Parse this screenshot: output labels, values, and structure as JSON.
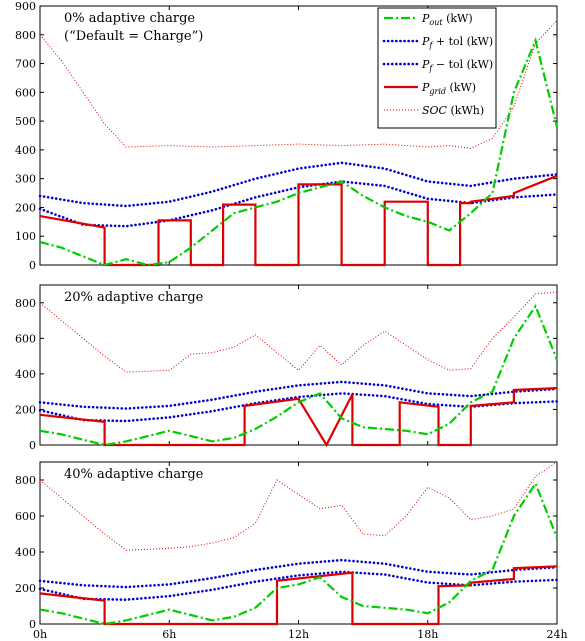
{
  "chart_data": [
    {
      "type": "line",
      "title": "0% adaptive charge",
      "subtitle": "(“Default = Charge”)",
      "xlim": [
        0,
        24
      ],
      "ylim": [
        0,
        900
      ],
      "x_ticks": [],
      "y_ticks": [
        0,
        100,
        200,
        300,
        400,
        500,
        600,
        700,
        800,
        900
      ],
      "legend": {
        "placement": "top-right",
        "entries": [
          {
            "label": "P_out (kW)",
            "color": "#00cc00",
            "style": "dash-dot"
          },
          {
            "label": "P_f + tol (kW)",
            "color": "#0000cc",
            "style": "dotted"
          },
          {
            "label": "P_f − tol (kW)",
            "color": "#0000cc",
            "style": "dotted"
          },
          {
            "label": "P_grid (kW)",
            "color": "#dd0000",
            "style": "solid"
          },
          {
            "label": "SOC (kWh)",
            "color": "#dd0000",
            "style": "fine-dotted"
          }
        ]
      },
      "series": [
        {
          "name": "P_f + tol (kW)",
          "color": "#0000cc",
          "x": [
            0,
            2,
            4,
            6,
            8,
            10,
            12,
            14,
            16,
            18,
            20,
            22,
            24
          ],
          "y": [
            240,
            215,
            205,
            220,
            255,
            300,
            335,
            355,
            335,
            290,
            275,
            300,
            315
          ]
        },
        {
          "name": "P_f − tol (kW)",
          "color": "#0000cc",
          "x": [
            0,
            2,
            4,
            6,
            8,
            10,
            12,
            14,
            16,
            18,
            20,
            22,
            24
          ],
          "y": [
            195,
            140,
            135,
            155,
            190,
            235,
            270,
            290,
            275,
            230,
            215,
            235,
            245
          ]
        },
        {
          "name": "SOC (kWh)",
          "color": "#dd0000",
          "x": [
            0,
            1,
            2,
            3,
            4,
            6,
            8,
            10,
            12,
            14,
            16,
            18,
            19,
            20,
            21,
            22,
            23,
            24
          ],
          "y": [
            800,
            710,
            600,
            490,
            410,
            415,
            410,
            415,
            420,
            415,
            420,
            410,
            415,
            405,
            440,
            550,
            770,
            850
          ]
        },
        {
          "name": "P_grid (kW)",
          "color": "#dd0000",
          "x": [
            0,
            3,
            3,
            5.5,
            5.5,
            7,
            7,
            8.5,
            8.5,
            10,
            10,
            12,
            12,
            14,
            14,
            16,
            16,
            18,
            18,
            19.5,
            19.5,
            20,
            20,
            22,
            22,
            24
          ],
          "y": [
            170,
            130,
            0,
            0,
            155,
            155,
            0,
            0,
            210,
            210,
            0,
            0,
            280,
            280,
            0,
            0,
            220,
            220,
            0,
            0,
            215,
            215,
            220,
            240,
            250,
            310
          ]
        },
        {
          "name": "P_out (kW)",
          "color": "#00cc00",
          "x": [
            0,
            1,
            2,
            3,
            4,
            5,
            6,
            7,
            8,
            9,
            10,
            11,
            12,
            13,
            14,
            15,
            16,
            17,
            18,
            19,
            20,
            21,
            22,
            23,
            24
          ],
          "y": [
            80,
            60,
            30,
            0,
            20,
            0,
            10,
            60,
            120,
            180,
            200,
            220,
            250,
            270,
            290,
            240,
            200,
            170,
            150,
            120,
            180,
            250,
            600,
            780,
            480
          ]
        }
      ]
    },
    {
      "type": "line",
      "title": "20% adaptive charge",
      "xlim": [
        0,
        24
      ],
      "ylim": [
        0,
        900
      ],
      "x_ticks": [],
      "y_ticks": [
        0,
        200,
        400,
        600,
        800
      ],
      "series": [
        {
          "name": "P_f + tol (kW)",
          "color": "#0000cc",
          "x": [
            0,
            2,
            4,
            6,
            8,
            10,
            12,
            14,
            16,
            18,
            20,
            22,
            24
          ],
          "y": [
            240,
            215,
            205,
            220,
            255,
            300,
            335,
            355,
            335,
            290,
            275,
            300,
            315
          ]
        },
        {
          "name": "P_f − tol (kW)",
          "color": "#0000cc",
          "x": [
            0,
            2,
            4,
            6,
            8,
            10,
            12,
            14,
            16,
            18,
            20,
            22,
            24
          ],
          "y": [
            195,
            140,
            135,
            155,
            190,
            235,
            270,
            290,
            275,
            230,
            215,
            235,
            245
          ]
        },
        {
          "name": "SOC (kWh)",
          "color": "#dd0000",
          "x": [
            0,
            1,
            2,
            3,
            4,
            5,
            6,
            7,
            8,
            9,
            10,
            11,
            12,
            13,
            14,
            15,
            16,
            17,
            18,
            19,
            20,
            21,
            22,
            23,
            24
          ],
          "y": [
            800,
            700,
            600,
            500,
            410,
            415,
            420,
            510,
            520,
            550,
            620,
            520,
            420,
            560,
            450,
            560,
            640,
            560,
            480,
            420,
            430,
            600,
            720,
            850,
            860
          ]
        },
        {
          "name": "P_grid (kW)",
          "color": "#dd0000",
          "x": [
            0,
            3,
            3,
            9.5,
            9.5,
            12,
            12,
            13.3,
            13.3,
            14.5,
            14.5,
            16.7,
            16.7,
            18.5,
            18.5,
            20,
            20,
            22,
            22,
            24
          ],
          "y": [
            170,
            130,
            0,
            0,
            220,
            260,
            260,
            0,
            0,
            285,
            0,
            0,
            240,
            215,
            0,
            0,
            220,
            240,
            310,
            320
          ]
        },
        {
          "name": "P_out (kW)",
          "color": "#00cc00",
          "x": [
            0,
            1,
            2,
            3,
            4,
            5,
            6,
            7,
            8,
            9,
            10,
            11,
            12,
            13,
            14,
            15,
            16,
            17,
            18,
            19,
            20,
            21,
            22,
            23,
            24
          ],
          "y": [
            80,
            60,
            30,
            0,
            20,
            50,
            80,
            50,
            20,
            40,
            90,
            160,
            240,
            290,
            150,
            100,
            90,
            80,
            60,
            120,
            240,
            300,
            600,
            780,
            480
          ]
        }
      ]
    },
    {
      "type": "line",
      "title": "40% adaptive charge",
      "xlim": [
        0,
        24
      ],
      "ylim": [
        0,
        900
      ],
      "x_ticks": [
        "0h",
        "6h",
        "12h",
        "18h",
        "24h"
      ],
      "y_ticks": [
        0,
        200,
        400,
        600,
        800
      ],
      "series": [
        {
          "name": "P_f + tol (kW)",
          "color": "#0000cc",
          "x": [
            0,
            2,
            4,
            6,
            8,
            10,
            12,
            14,
            16,
            18,
            20,
            22,
            24
          ],
          "y": [
            240,
            215,
            205,
            220,
            255,
            300,
            335,
            355,
            335,
            290,
            275,
            300,
            315
          ]
        },
        {
          "name": "P_f − tol (kW)",
          "color": "#0000cc",
          "x": [
            0,
            2,
            4,
            6,
            8,
            10,
            12,
            14,
            16,
            18,
            20,
            22,
            24
          ],
          "y": [
            195,
            140,
            135,
            155,
            190,
            235,
            270,
            290,
            275,
            230,
            215,
            235,
            245
          ]
        },
        {
          "name": "SOC (kWh)",
          "color": "#dd0000",
          "x": [
            0,
            1,
            2,
            3,
            4,
            5,
            6,
            7,
            8,
            9,
            10,
            11,
            12,
            13,
            14,
            15,
            16,
            17,
            18,
            19,
            20,
            21,
            22,
            23,
            24
          ],
          "y": [
            800,
            700,
            600,
            500,
            410,
            415,
            420,
            430,
            450,
            480,
            560,
            800,
            720,
            640,
            660,
            500,
            490,
            600,
            760,
            700,
            580,
            600,
            640,
            820,
            900
          ]
        },
        {
          "name": "P_grid (kW)",
          "color": "#dd0000",
          "x": [
            0,
            3,
            3,
            11,
            11,
            14.5,
            14.5,
            18.5,
            18.5,
            20,
            20,
            22,
            22,
            24
          ],
          "y": [
            170,
            130,
            0,
            0,
            240,
            285,
            0,
            0,
            210,
            215,
            230,
            250,
            310,
            320
          ]
        },
        {
          "name": "P_out (kW)",
          "color": "#00cc00",
          "x": [
            0,
            1,
            2,
            3,
            4,
            5,
            6,
            7,
            8,
            9,
            10,
            11,
            12,
            13,
            14,
            15,
            16,
            17,
            18,
            19,
            20,
            21,
            22,
            23,
            24
          ],
          "y": [
            80,
            60,
            30,
            0,
            20,
            50,
            80,
            50,
            20,
            40,
            90,
            200,
            220,
            260,
            150,
            100,
            90,
            80,
            60,
            120,
            240,
            300,
            600,
            780,
            480
          ]
        }
      ]
    }
  ]
}
